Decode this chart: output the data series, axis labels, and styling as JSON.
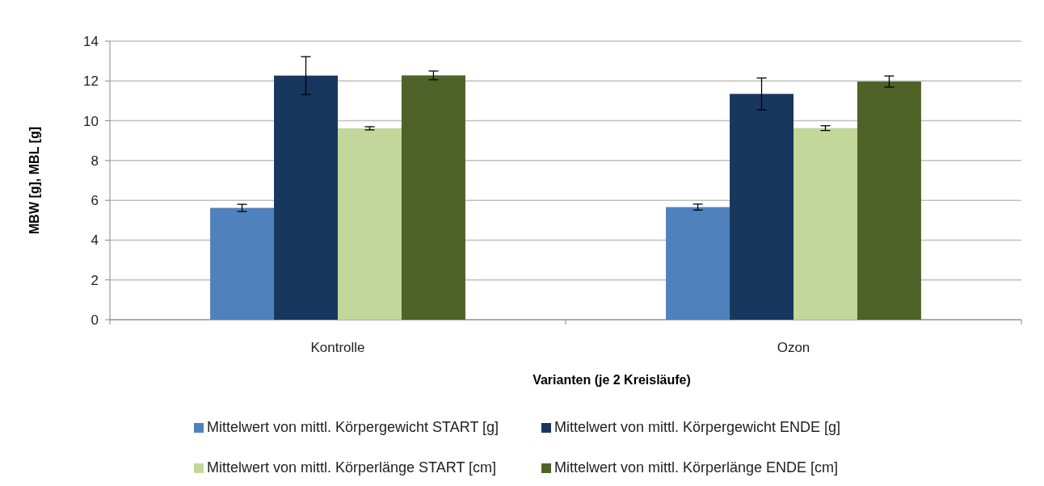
{
  "chart_data": {
    "type": "bar",
    "xlabel": "Varianten (je 2 Kreisläufe)",
    "ylabel": "MBW [g], MBL [g]",
    "categories": [
      "Kontrolle",
      "Ozon"
    ],
    "series": [
      {
        "name": "Mittelwert von mittl. Körpergewicht START [g]",
        "color": "#4f81bd",
        "values": [
          5.62,
          5.66
        ],
        "errors": [
          0.18,
          0.15
        ]
      },
      {
        "name": "Mittelwert von mittl. Körpergewicht ENDE [g]",
        "color": "#17375e",
        "values": [
          12.27,
          11.35
        ],
        "errors": [
          0.95,
          0.8
        ]
      },
      {
        "name": "Mittelwert von mittl. Körperlänge START [cm]",
        "color": "#c4d79b",
        "values": [
          9.62,
          9.63
        ],
        "errors": [
          0.08,
          0.12
        ]
      },
      {
        "name": "Mittelwert von mittl. Körperlänge ENDE [cm]",
        "color": "#4f6228",
        "values": [
          12.28,
          11.97
        ],
        "errors": [
          0.22,
          0.28
        ]
      }
    ],
    "ylim": [
      0,
      14
    ],
    "yticks": [
      0,
      2,
      4,
      6,
      8,
      10,
      12,
      14
    ],
    "grid": "y",
    "legend": "bottom"
  }
}
